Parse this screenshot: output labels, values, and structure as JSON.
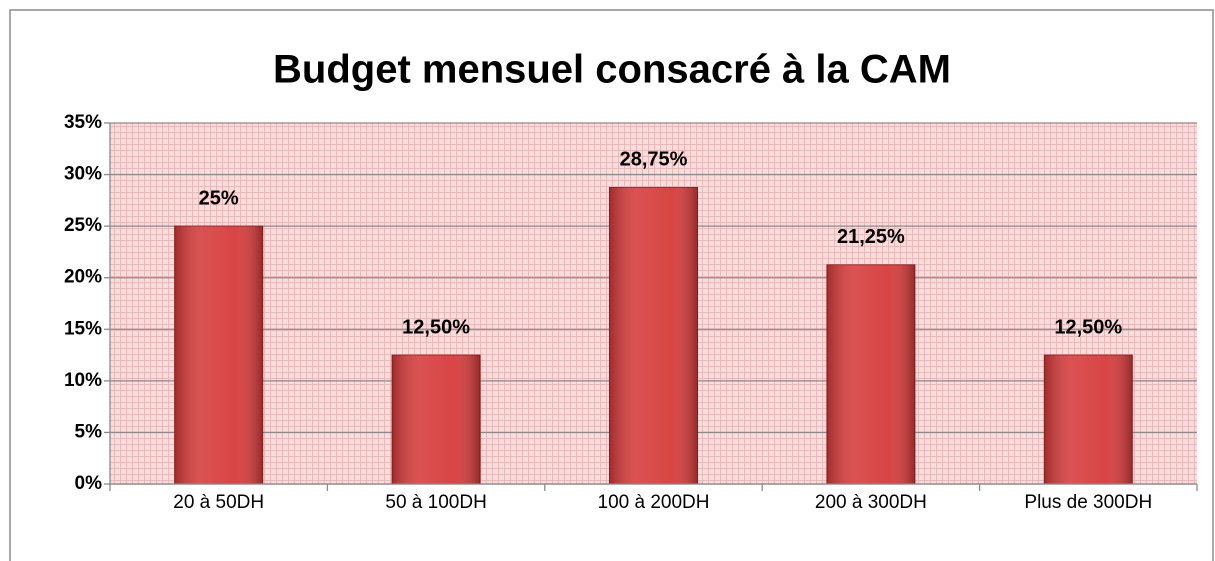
{
  "chart_data": {
    "type": "bar",
    "title": "Budget mensuel consacré à la CAM",
    "categories": [
      "20 à 50DH",
      "50 à 100DH",
      "100 à 200DH",
      "200 à 300DH",
      "Plus de 300DH"
    ],
    "values": [
      25,
      12.5,
      28.75,
      21.25,
      12.5
    ],
    "value_labels": [
      "25%",
      "12,50%",
      "28,75%",
      "21,25%",
      "12,50%"
    ],
    "color": "#d63b3b",
    "ylim": [
      0,
      35
    ],
    "yticks": [
      {
        "value": 0,
        "label": "0%"
      },
      {
        "value": 5,
        "label": "5%"
      },
      {
        "value": 10,
        "label": "10%"
      },
      {
        "value": 15,
        "label": "15%"
      },
      {
        "value": 20,
        "label": "20%"
      },
      {
        "value": 25,
        "label": "25%"
      },
      {
        "value": 30,
        "label": "30%"
      },
      {
        "value": 35,
        "label": "35%"
      }
    ],
    "grid": true
  }
}
